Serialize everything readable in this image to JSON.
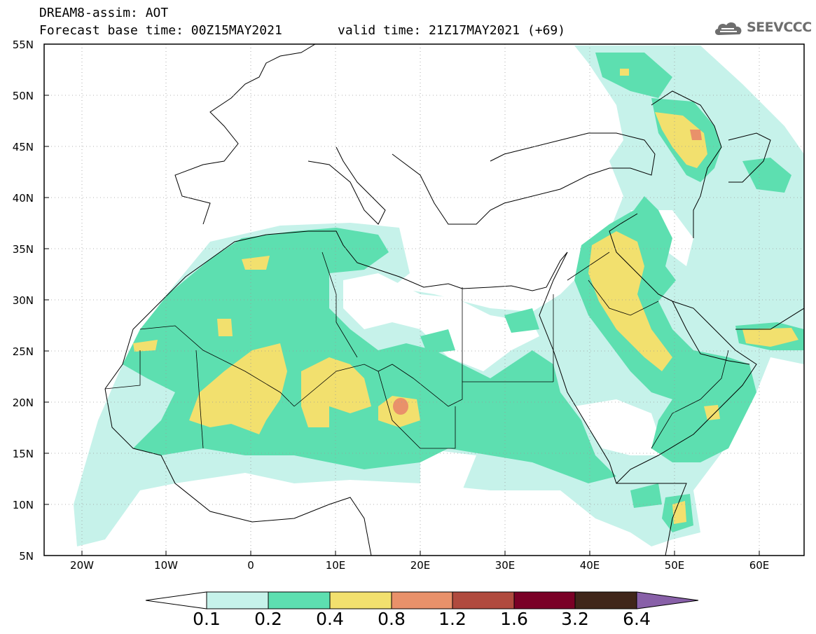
{
  "header": {
    "line1": "DREAM8-assim: AOT",
    "line2": "Forecast base time: 00Z15MAY2021",
    "line3": "valid time: 21Z17MAY2021 (+69)"
  },
  "logo": {
    "text": "SEEVCCC"
  },
  "map": {
    "projection": "latlon",
    "lon_range": [
      -25,
      65
    ],
    "lat_range": [
      5,
      55
    ],
    "lat_labels": [
      "55N",
      "50N",
      "45N",
      "40N",
      "35N",
      "30N",
      "25N",
      "20N",
      "15N",
      "10N",
      "5N"
    ],
    "lon_labels": [
      "20W",
      "10W",
      "0",
      "10E",
      "20E",
      "30E",
      "40E",
      "50E",
      "60E"
    ],
    "gridlines": "dotted"
  },
  "colorbar": {
    "levels": [
      "0.1",
      "0.2",
      "0.4",
      "0.8",
      "1.2",
      "1.6",
      "3.2",
      "6.4"
    ],
    "colors": [
      "#ffffff",
      "#c6f2ea",
      "#5ddfb0",
      "#f2e06e",
      "#e9916a",
      "#b04a3e",
      "#7a0026",
      "#40261a",
      "#8860a8"
    ]
  }
}
